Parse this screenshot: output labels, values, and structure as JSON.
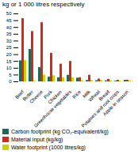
{
  "chart_data": {
    "type": "bar",
    "title": "kg or 1 000 litres respectively",
    "categories": [
      "Beef",
      "Butter",
      "Cheese",
      "Pork",
      "Chicken",
      "Greenhouse vegetables",
      "Rice",
      "Milk",
      "Wheat",
      "Bread",
      "Potatoes and root crops",
      "Apple in season"
    ],
    "series": [
      {
        "name": "Carbon footprint (kg CO₂-equivalent/kg)",
        "color": "#1a6b5a",
        "values": [
          15.5,
          23.8,
          10.5,
          3.5,
          3.0,
          4.8,
          2.7,
          1.0,
          0.8,
          0.7,
          0.5,
          1.1
        ]
      },
      {
        "name": "Material input (kg/kg)",
        "color": "#d9281a",
        "values": [
          46.5,
          37.0,
          43.5,
          21.0,
          13.0,
          15.0,
          3.0,
          4.8,
          2.0,
          1.8,
          1.2,
          1.2
        ]
      },
      {
        "name": "Water footprint (1000 litres/kg)",
        "color": "#c8d400",
        "values": [
          15.5,
          0.5,
          5.0,
          4.5,
          3.0,
          3.0,
          0.8,
          1.0,
          1.2,
          0.9,
          0.5,
          0.7
        ]
      }
    ],
    "ylim": [
      0,
      50
    ],
    "yticks": [
      0,
      5,
      10,
      15,
      20,
      25,
      30,
      35,
      40,
      45,
      50
    ],
    "legend": "lower left"
  }
}
